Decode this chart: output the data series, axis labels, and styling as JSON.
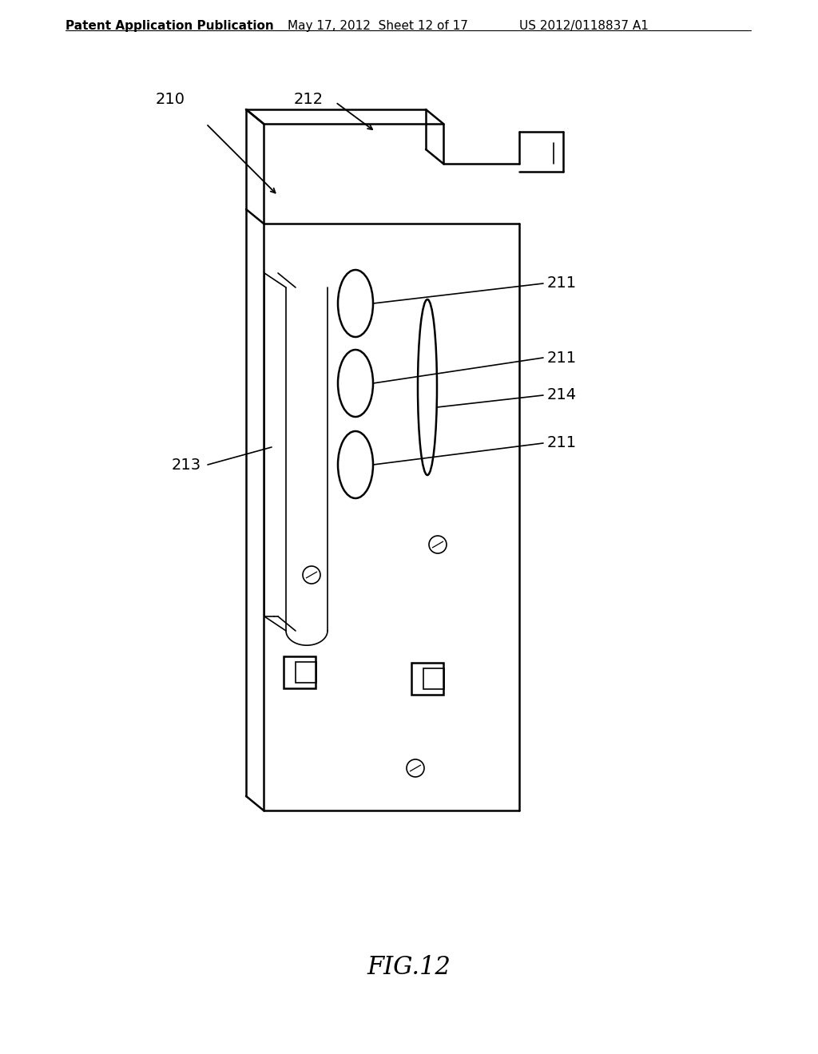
{
  "header_left": "Patent Application Publication",
  "header_mid": "May 17, 2012  Sheet 12 of 17",
  "header_right": "US 2012/0118837 A1",
  "bg_color": "#ffffff",
  "line_color": "#000000",
  "label_210": "210",
  "label_211": "211",
  "label_212": "212",
  "label_213": "213",
  "label_214": "214",
  "title": "FIG.12",
  "header_fontsize": 11,
  "label_fontsize": 14,
  "title_fontsize": 22
}
